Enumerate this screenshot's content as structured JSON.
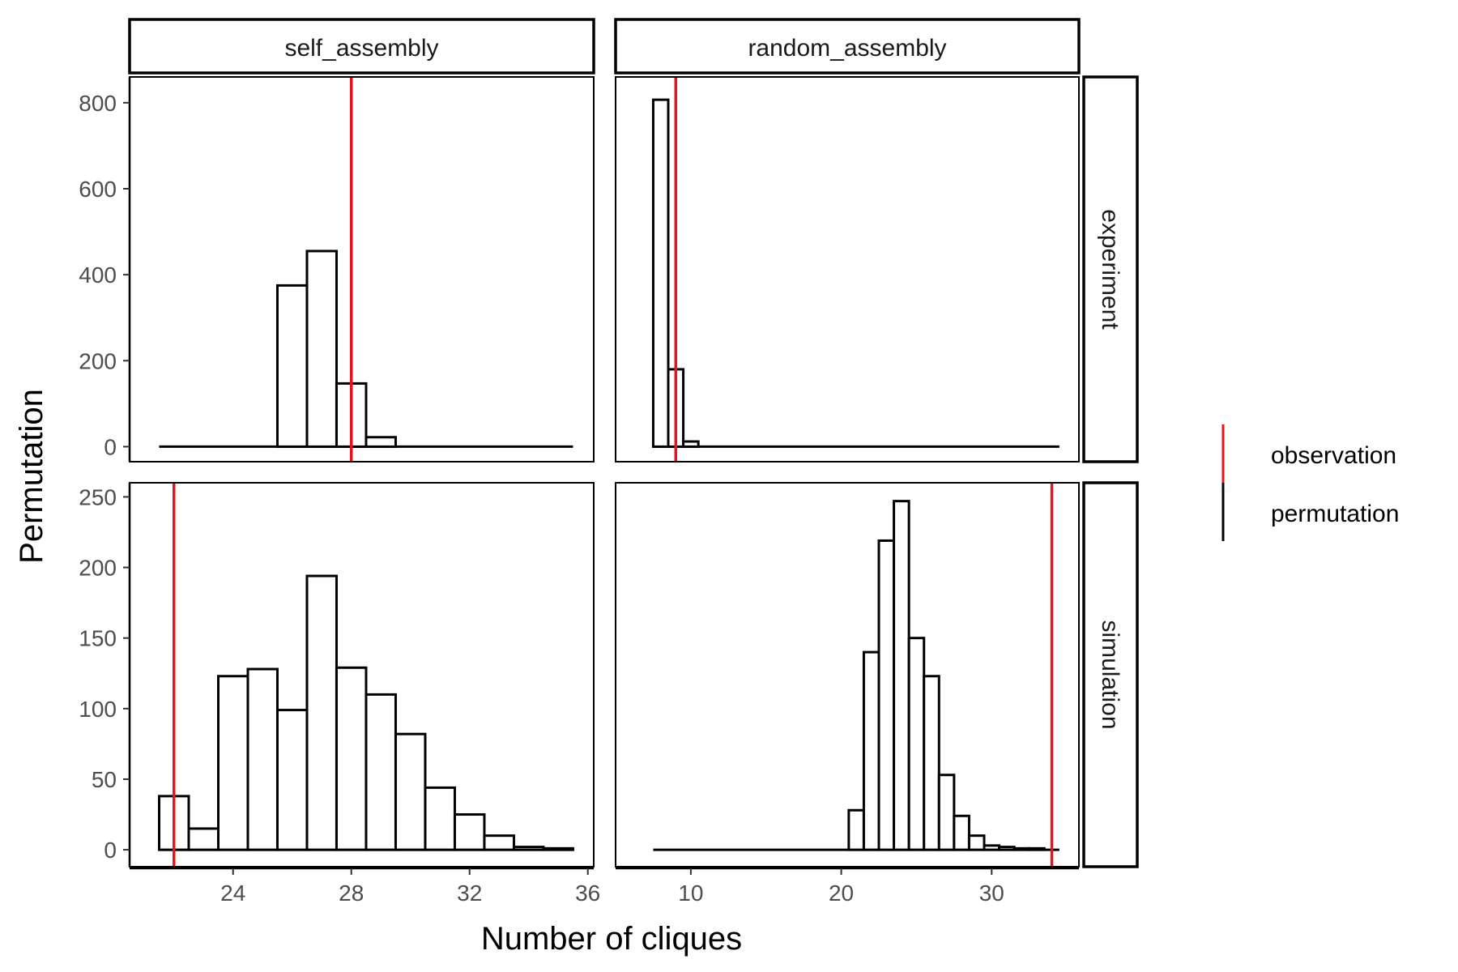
{
  "chart_data": {
    "type": "bar",
    "xlabel": "Number of cliques",
    "ylabel": "Permutation",
    "legend": {
      "position": "right",
      "items": [
        {
          "label": "observation",
          "color": "#e8141c"
        },
        {
          "label": "permutation",
          "color": "#000000"
        }
      ]
    },
    "columns": [
      "self_assembly",
      "random_assembly"
    ],
    "rows": [
      "experiment",
      "simulation"
    ],
    "x_axes": {
      "self_assembly": {
        "xlim": [
          20.5,
          36.2
        ],
        "ticks": [
          24,
          28,
          32,
          36
        ]
      },
      "random_assembly": {
        "xlim": [
          5.0,
          35.8
        ],
        "ticks": [
          10,
          20,
          30
        ]
      }
    },
    "y_axes": {
      "experiment": {
        "ylim": [
          -35,
          860
        ],
        "ticks": [
          0,
          200,
          400,
          600,
          800
        ]
      },
      "simulation": {
        "ylim": [
          -12,
          260
        ],
        "ticks": [
          0,
          50,
          100,
          150,
          200,
          250
        ]
      }
    },
    "panels": [
      {
        "column": "self_assembly",
        "row": "experiment",
        "binwidth": 1,
        "x_range": [
          21.5,
          35.5
        ],
        "observation": 28,
        "bins": [
          {
            "x": 26,
            "count": 375
          },
          {
            "x": 27,
            "count": 455
          },
          {
            "x": 28,
            "count": 147
          },
          {
            "x": 29,
            "count": 22
          }
        ]
      },
      {
        "column": "random_assembly",
        "row": "experiment",
        "binwidth": 1,
        "x_range": [
          7.5,
          34.5
        ],
        "observation": 9,
        "bins": [
          {
            "x": 8,
            "count": 807
          },
          {
            "x": 9,
            "count": 180
          },
          {
            "x": 10,
            "count": 12
          }
        ]
      },
      {
        "column": "self_assembly",
        "row": "simulation",
        "binwidth": 1,
        "x_range": [
          21.5,
          35.5
        ],
        "observation": 22,
        "bins": [
          {
            "x": 22,
            "count": 38
          },
          {
            "x": 23,
            "count": 15
          },
          {
            "x": 24,
            "count": 123
          },
          {
            "x": 25,
            "count": 128
          },
          {
            "x": 26,
            "count": 99
          },
          {
            "x": 27,
            "count": 194
          },
          {
            "x": 28,
            "count": 129
          },
          {
            "x": 29,
            "count": 110
          },
          {
            "x": 30,
            "count": 82
          },
          {
            "x": 31,
            "count": 44
          },
          {
            "x": 32,
            "count": 25
          },
          {
            "x": 33,
            "count": 10
          },
          {
            "x": 34,
            "count": 2
          },
          {
            "x": 35,
            "count": 1
          }
        ]
      },
      {
        "column": "random_assembly",
        "row": "simulation",
        "binwidth": 1,
        "x_range": [
          7.5,
          34.5
        ],
        "observation": 34,
        "bins": [
          {
            "x": 21,
            "count": 28
          },
          {
            "x": 22,
            "count": 140
          },
          {
            "x": 23,
            "count": 219
          },
          {
            "x": 24,
            "count": 247
          },
          {
            "x": 25,
            "count": 150
          },
          {
            "x": 26,
            "count": 123
          },
          {
            "x": 27,
            "count": 53
          },
          {
            "x": 28,
            "count": 24
          },
          {
            "x": 29,
            "count": 10
          },
          {
            "x": 30,
            "count": 3
          },
          {
            "x": 31,
            "count": 2
          },
          {
            "x": 32,
            "count": 1
          },
          {
            "x": 33,
            "count": 1
          }
        ]
      }
    ]
  }
}
